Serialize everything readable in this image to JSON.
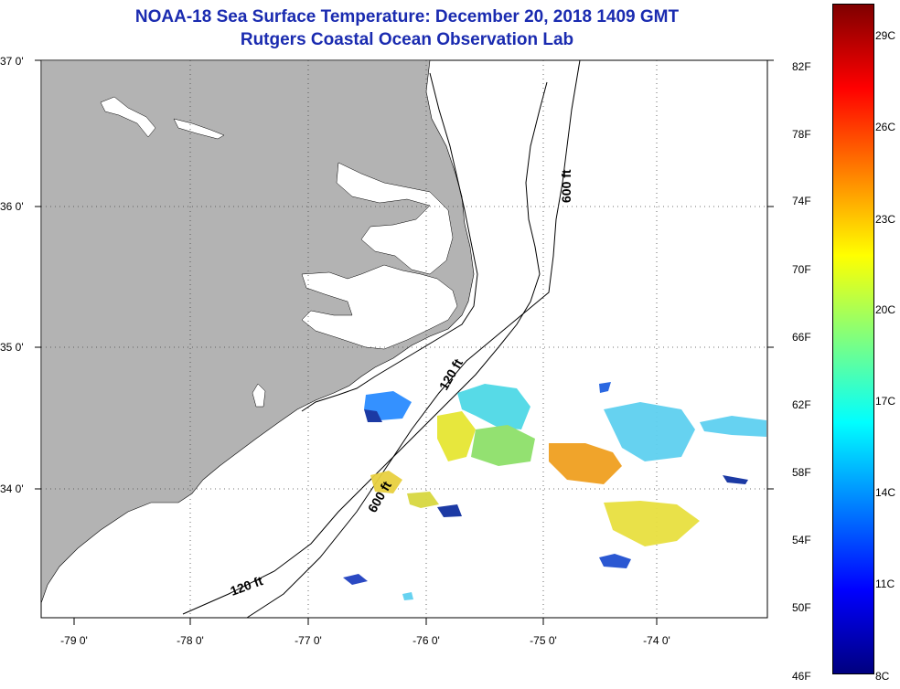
{
  "header": {
    "title": "NOAA-18 Sea Surface Temperature:  December 20, 2018 1409 GMT",
    "subtitle": "Rutgers Coastal Ocean Observation Lab"
  },
  "map": {
    "lat_labels": [
      "37 0'",
      "36 0'",
      "35 0'",
      "34 0'"
    ],
    "lon_labels": [
      "-79 0'",
      "-78 0'",
      "-77 0'",
      "-76 0'",
      "-75 0'",
      "-74 0'"
    ],
    "contours": {
      "label_600_north": "600 ft",
      "label_600_south": "600 ft",
      "label_120_north": "120 ft",
      "label_120_south": "120 ft"
    },
    "land_color": "#b3b3b3"
  },
  "colorbar": {
    "fahrenheit_labels": [
      "82F",
      "78F",
      "74F",
      "70F",
      "66F",
      "62F",
      "58F",
      "54F",
      "50F",
      "46F"
    ],
    "celsius_labels": [
      "29C",
      "26C",
      "23C",
      "20C",
      "17C",
      "14C",
      "11C",
      "8C"
    ],
    "colors": [
      "#00007f",
      "#0000ff",
      "#007fff",
      "#00ffff",
      "#7fff7f",
      "#ffff00",
      "#ff7f00",
      "#ff0000",
      "#7f0000"
    ]
  }
}
